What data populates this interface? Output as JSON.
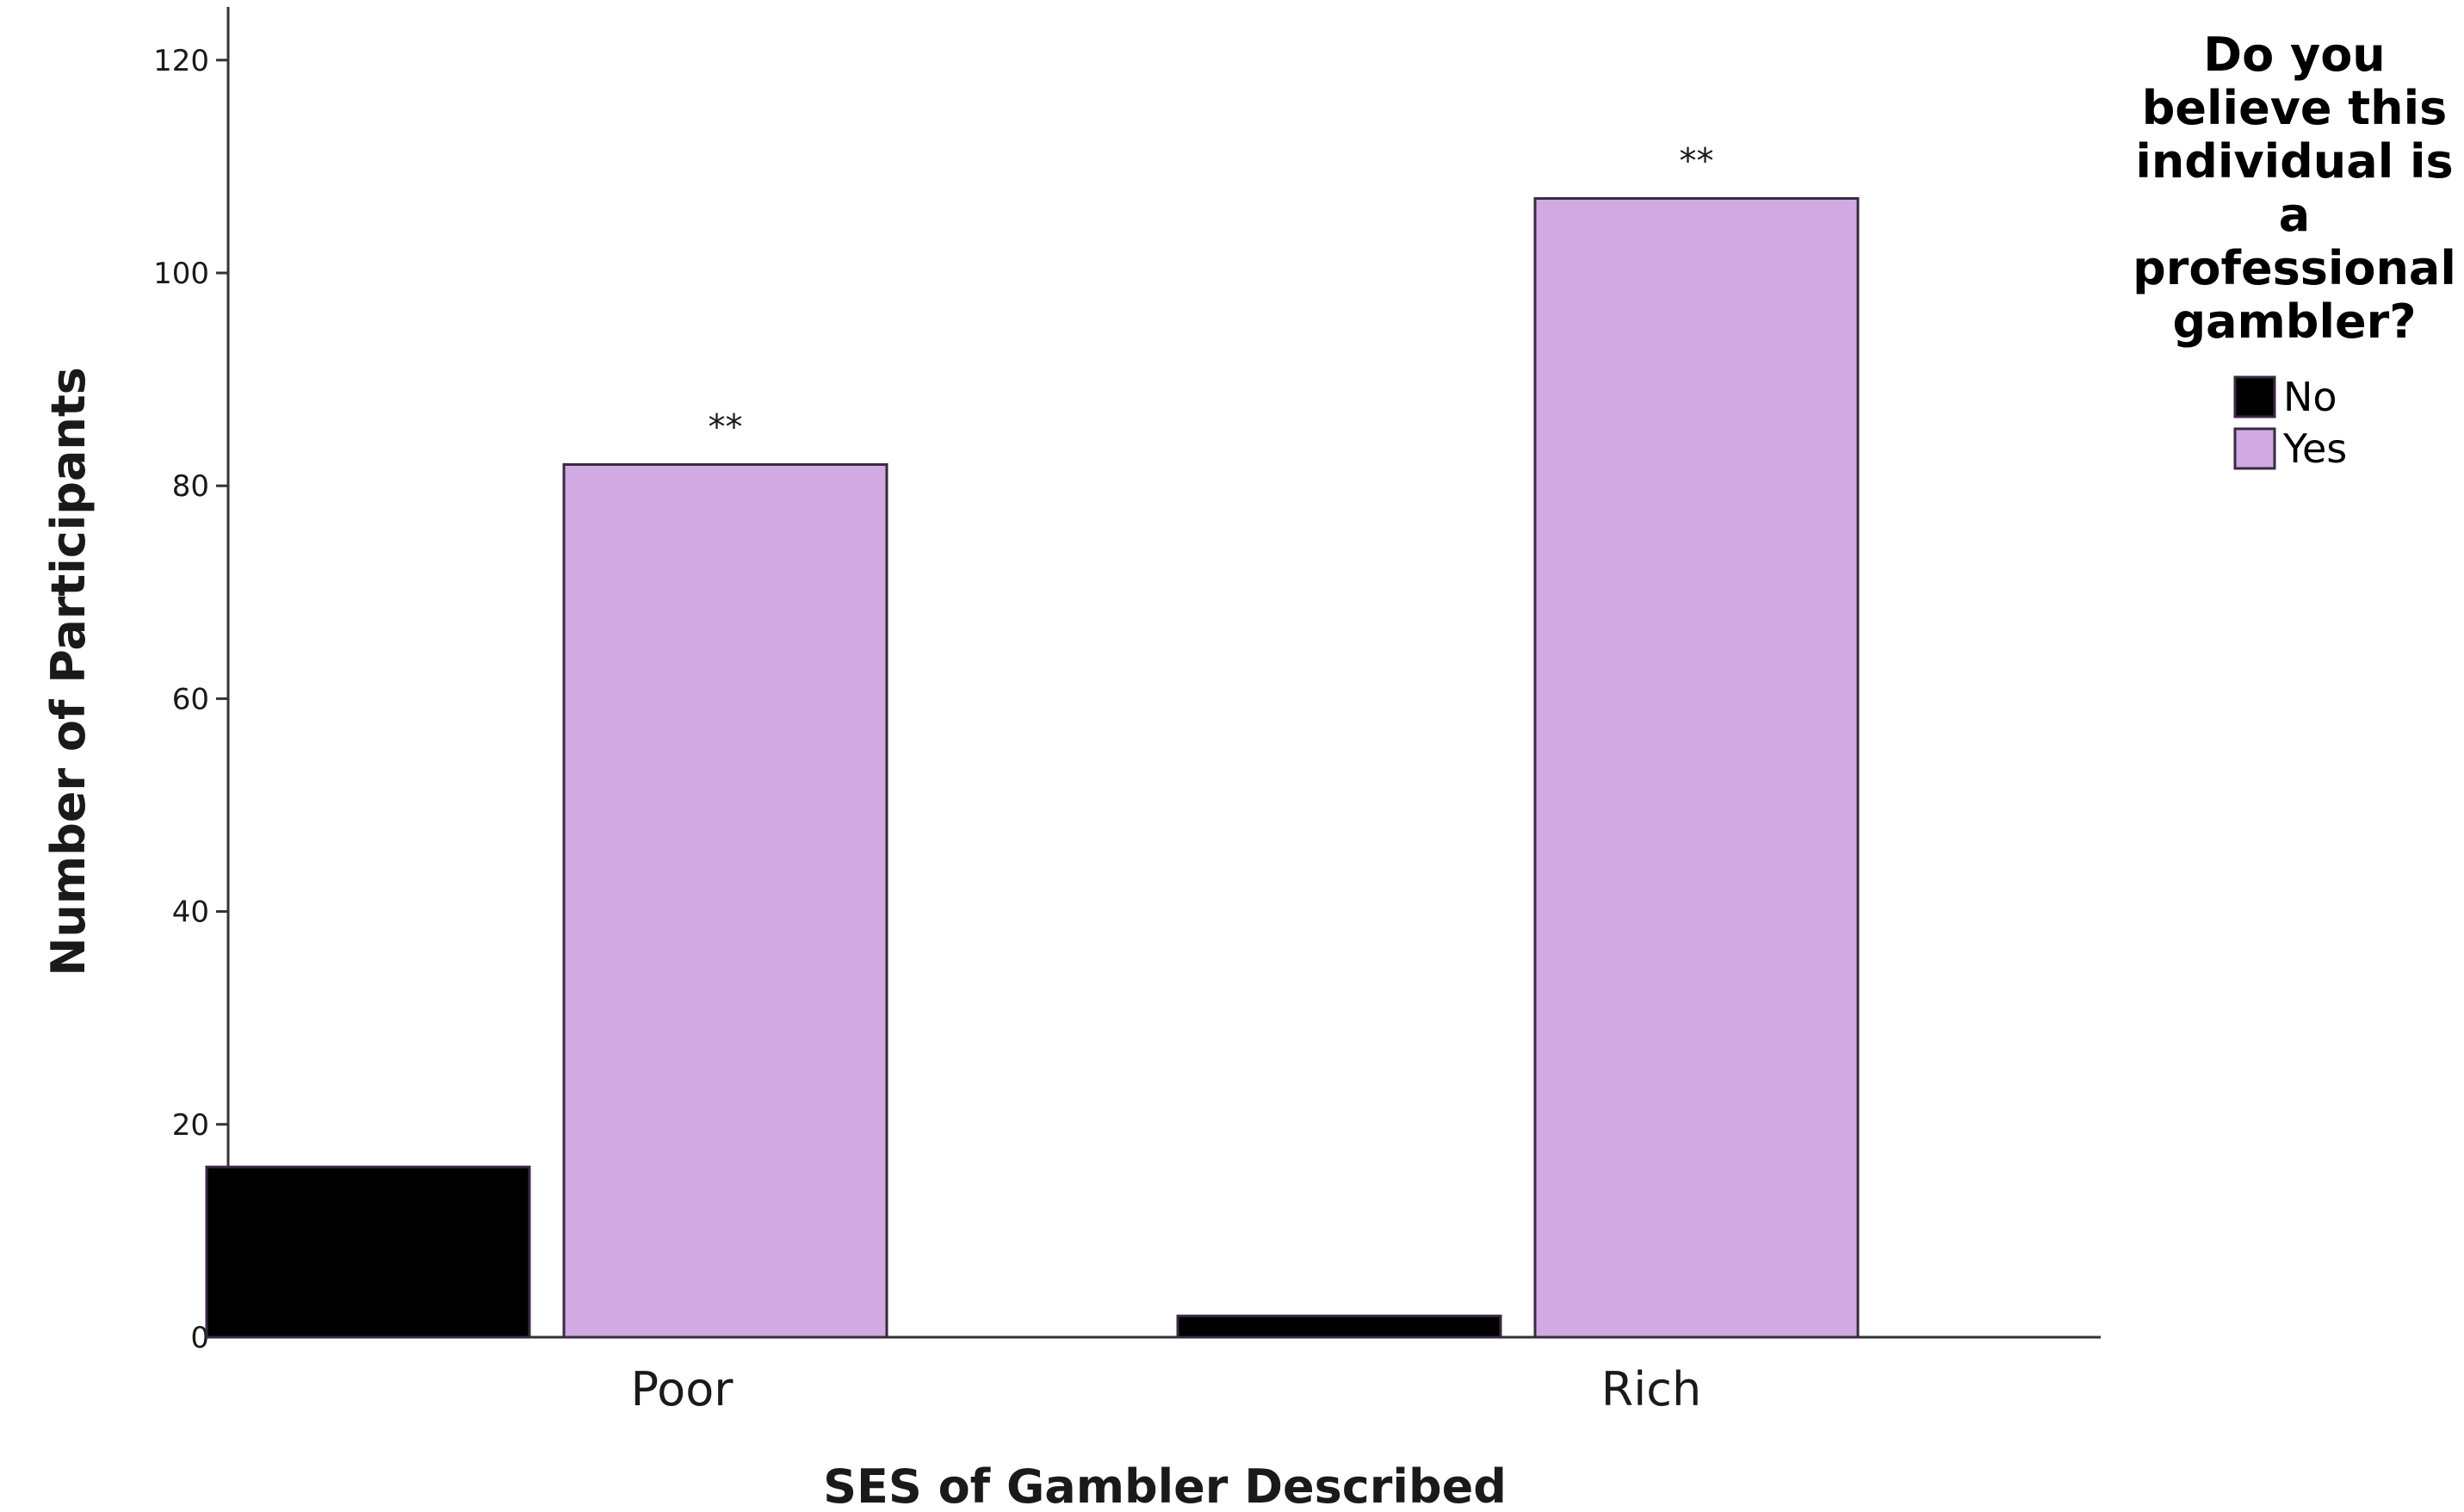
{
  "chart_data": {
    "type": "bar",
    "categories": [
      "Poor",
      "Rich"
    ],
    "series": [
      {
        "name": "No",
        "values": [
          16,
          2
        ],
        "color": "#000000"
      },
      {
        "name": "Yes",
        "values": [
          82,
          107
        ],
        "color": "#d1a9e3"
      }
    ],
    "bar_annotations": {
      "Yes": [
        "**",
        "**"
      ]
    },
    "xlabel": "SES of Gambler Described",
    "ylabel": "Number of Participants",
    "ylim": [
      0,
      125
    ],
    "yticks": [
      0,
      20,
      40,
      60,
      80,
      100,
      120
    ],
    "grid": false,
    "legend": {
      "title_lines": [
        "Do you",
        "believe this",
        "individual is",
        "a",
        "professional",
        "gambler?"
      ],
      "placement": "top-right"
    }
  }
}
